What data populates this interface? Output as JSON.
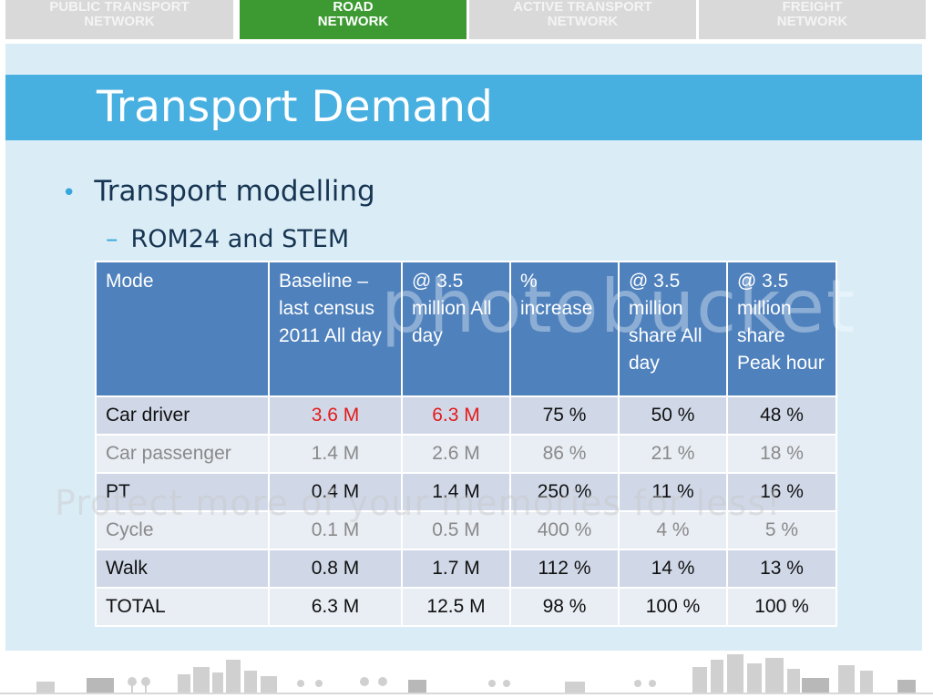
{
  "nav": {
    "tabs": [
      {
        "line1": "PUBLIC TRANSPORT",
        "line2": "NETWORK"
      },
      {
        "line1": "ROAD",
        "line2": "NETWORK"
      },
      {
        "line1": "ACTIVE TRANSPORT",
        "line2": "NETWORK"
      },
      {
        "line1": "FREIGHT",
        "line2": "NETWORK"
      }
    ],
    "active_color": "#3d9a33"
  },
  "slide": {
    "title": "Transport Demand",
    "bullet": "Transport modelling",
    "sub_bullet": "ROM24 and STEM"
  },
  "table": {
    "headers": [
      "Mode",
      "Baseline – last census 2011 All day",
      "@ 3.5 million All day",
      "% increase",
      "@ 3.5 million share All day",
      "@ 3.5 million share Peak hour"
    ],
    "rows": [
      [
        "Car driver",
        "3.6 M",
        "6.3 M",
        "75 %",
        "50 %",
        "48 %"
      ],
      [
        "Car passenger",
        "1.4 M",
        "2.6 M",
        "86 %",
        "21 %",
        "18 %"
      ],
      [
        "PT",
        "0.4 M",
        "1.4 M",
        "250 %",
        "11 %",
        "16 %"
      ],
      [
        "Cycle",
        "0.1 M",
        "0.5 M",
        "400 %",
        "4 %",
        "5 %"
      ],
      [
        "Walk",
        "0.8 M",
        "1.7 M",
        "112 %",
        "14 %",
        "13 %"
      ],
      [
        "TOTAL",
        "6.3 M",
        "12.5 M",
        "98 %",
        "100 %",
        "100 %"
      ]
    ],
    "highlight_color": "#e31b1b"
  },
  "watermark": {
    "main": "photobucket",
    "banner": "Protect more of your memories for less!"
  }
}
